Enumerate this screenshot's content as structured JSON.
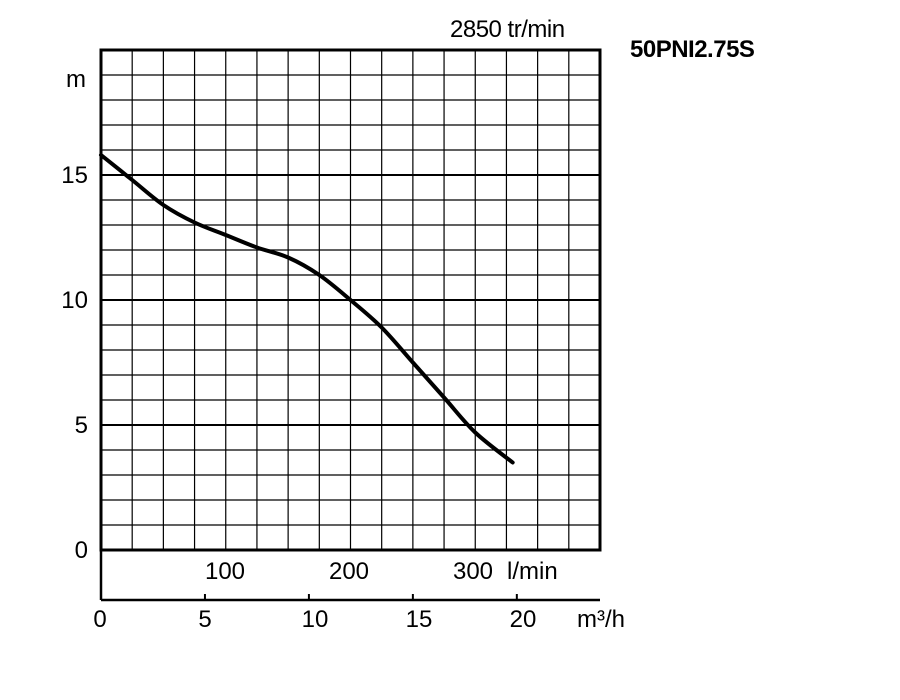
{
  "chart_data": {
    "type": "line",
    "model": "50PNI2.75S",
    "speed_label": "2850 tr/min",
    "ylabel": "m",
    "ylim": [
      0,
      20
    ],
    "y_major_ticks": [
      0,
      5,
      10,
      15
    ],
    "y_minor_step": 1,
    "xlabel": "m³/h",
    "xlim": [
      0,
      24
    ],
    "x_ticks": [
      0,
      5,
      10,
      15,
      20
    ],
    "x_tick_labels": [
      "0",
      "5",
      "10",
      "15",
      "20"
    ],
    "x_minor_step": 1.5,
    "lmin_ticks": [
      100,
      200,
      300
    ],
    "lmin_tick_labels": [
      "100",
      "200",
      "300"
    ],
    "lmin_unit_label": "l/min",
    "grid": true,
    "series": [
      {
        "x": [
          0,
          1.5,
          3,
          4.5,
          6,
          7.5,
          9,
          10.5,
          12,
          13.5,
          15,
          16.5,
          18,
          19.8
        ],
        "y": [
          15.8,
          14.8,
          13.8,
          13.1,
          12.6,
          12.1,
          11.7,
          11.0,
          10.0,
          8.9,
          7.5,
          6.1,
          4.7,
          3.5
        ]
      }
    ]
  }
}
